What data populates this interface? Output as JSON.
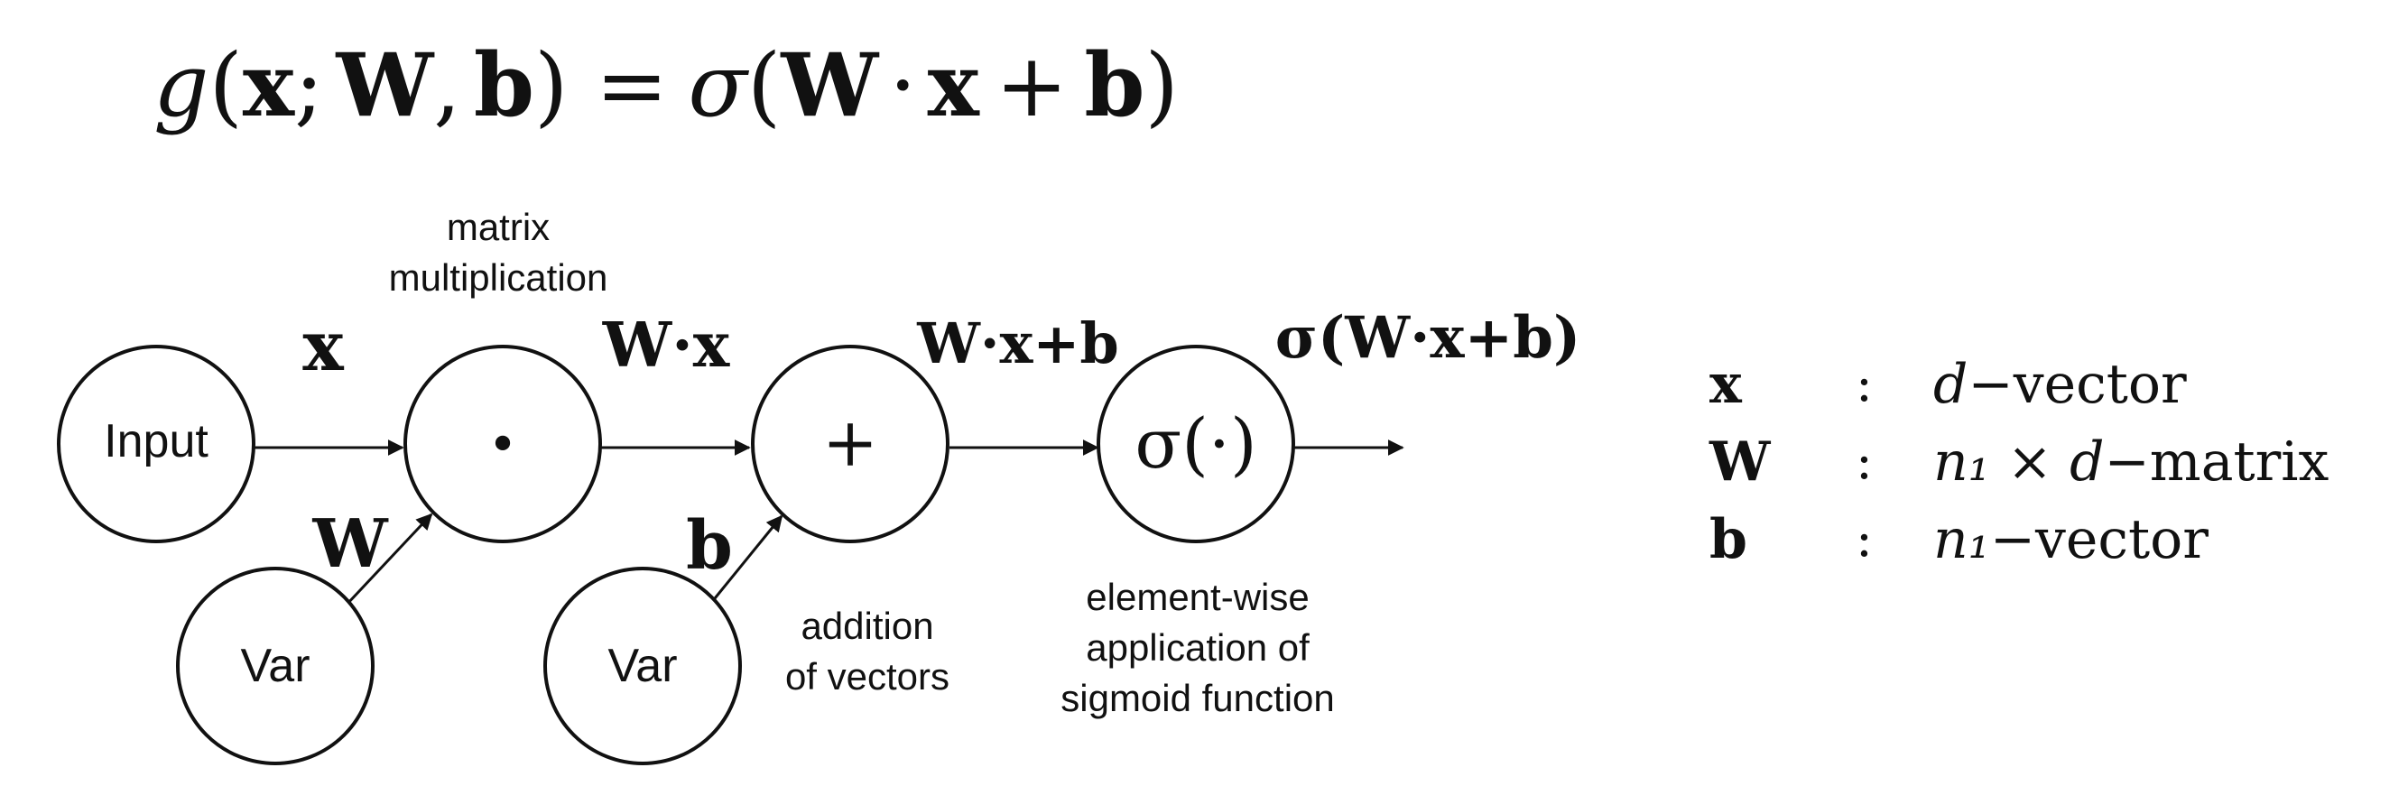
{
  "formula": {
    "g": "g",
    "open": "(",
    "x": "x",
    "semi": ";",
    "W": "W",
    "comma": ",",
    "b": "b",
    "close_eq": ") =",
    "sigma": "σ",
    "open2": "(",
    "W2": "W",
    "dot": "·",
    "x2": "x",
    "plus": "+",
    "b2": "b",
    "close2": ")"
  },
  "nodes": {
    "input": "Input",
    "dot_op": "•",
    "plus_op": "+",
    "sigmoid_op": "σ(·)",
    "var1": "Var",
    "var2": "Var"
  },
  "edge_labels": {
    "x": "x",
    "Wx": "W·x",
    "Wxb": "W·x+b",
    "sigma_Wxb": "σ(W·x+b)",
    "W": "W",
    "b": "b"
  },
  "captions": {
    "matmul_line1": "matrix",
    "matmul_line2": "multiplication",
    "add_line1": "addition",
    "add_line2": "of vectors",
    "sig_line1": "element-wise",
    "sig_line2": "application of",
    "sig_line3": "sigmoid function"
  },
  "legend": [
    {
      "symbol": "x",
      "sep": ":",
      "desc_a": "d",
      "desc_b": "−vector"
    },
    {
      "symbol": "W",
      "sep": ":",
      "desc_a": "n₁ × d",
      "desc_b": "−matrix"
    },
    {
      "symbol": "b",
      "sep": ":",
      "desc_a": "n₁",
      "desc_b": "−vector"
    }
  ]
}
